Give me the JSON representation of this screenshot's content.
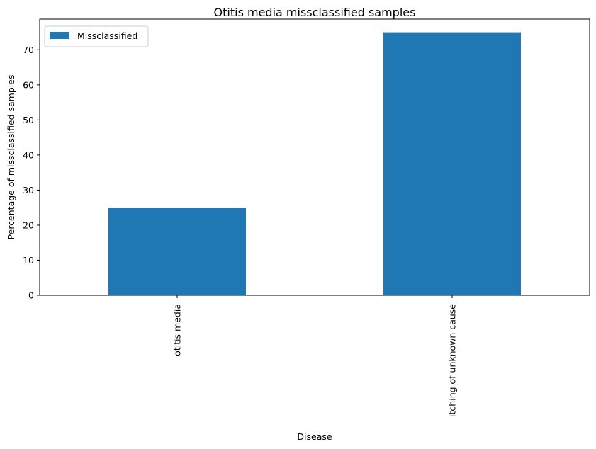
{
  "chart_data": {
    "type": "bar",
    "title": "Otitis media missclassified samples",
    "xlabel": "Disease",
    "ylabel": "Percentage of missclassified samples",
    "categories": [
      "otitis media",
      "itching of unknown cause"
    ],
    "series": [
      {
        "name": "Missclassified",
        "values": [
          25,
          75
        ],
        "color": "#1f77b4"
      }
    ],
    "ylim": [
      0,
      78.75
    ],
    "yticks": [
      0,
      10,
      20,
      30,
      40,
      50,
      60,
      70
    ],
    "grid": false,
    "legend": "top-left"
  }
}
